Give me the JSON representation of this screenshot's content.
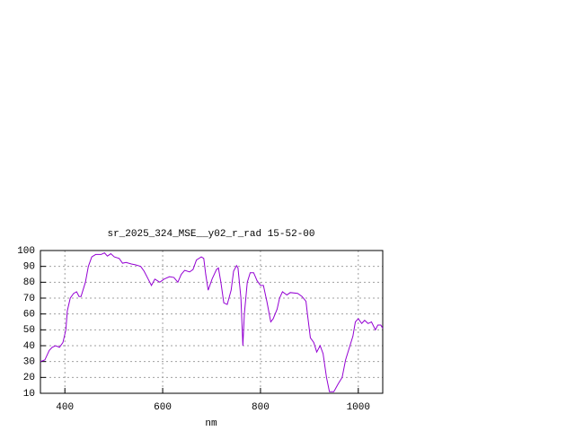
{
  "chart_data": {
    "type": "line",
    "title": "sr_2025_324_MSE__y02_r_rad 15-52-00",
    "x_label": "nm",
    "x": [
      350,
      359,
      368,
      374,
      381,
      389,
      396,
      402,
      405,
      411,
      418,
      424,
      429,
      433,
      442,
      448,
      455,
      463,
      474,
      481,
      487,
      494,
      501,
      511,
      518,
      525,
      536,
      544,
      555,
      562,
      572,
      577,
      584,
      594,
      603,
      614,
      623,
      631,
      638,
      645,
      655,
      662,
      669,
      679,
      684,
      688,
      693,
      701,
      710,
      714,
      719,
      725,
      732,
      740,
      745,
      751,
      754,
      760,
      764,
      767,
      773,
      779,
      786,
      793,
      800,
      806,
      813,
      821,
      826,
      834,
      839,
      845,
      854,
      861,
      876,
      885,
      893,
      896,
      902,
      909,
      915,
      922,
      928,
      935,
      941,
      950,
      959,
      967,
      974,
      981,
      989,
      994,
      1000,
      1007,
      1013,
      1020,
      1027,
      1035,
      1040,
      1046,
      1050
    ],
    "series": [
      {
        "color": "#9400d3",
        "values": [
          30,
          31,
          37,
          39,
          40,
          39,
          42,
          50,
          62,
          70,
          73,
          74,
          71,
          71,
          80,
          90,
          96,
          97.5,
          97.5,
          98.5,
          96.5,
          98,
          96,
          95,
          92,
          92.5,
          91.5,
          91,
          90,
          87,
          81,
          78,
          82,
          80,
          82,
          83.5,
          83,
          80,
          85,
          87.5,
          86.5,
          88,
          94,
          96,
          95,
          85,
          75,
          82,
          88,
          89,
          80,
          67,
          66,
          75,
          87,
          90.5,
          89,
          70,
          40,
          60,
          80,
          86,
          86,
          81,
          78,
          78,
          68,
          55,
          57,
          63,
          70,
          74,
          72,
          73.5,
          73,
          71,
          68,
          60,
          45,
          42,
          36,
          40,
          35,
          20,
          11,
          11,
          16,
          20,
          31,
          38,
          46,
          55,
          57,
          54,
          56,
          54,
          55,
          50,
          53,
          53,
          51
        ]
      }
    ],
    "xlim": [
      350,
      1050
    ],
    "ylim": [
      10,
      100
    ],
    "xticks": [
      400,
      600,
      800,
      1000
    ],
    "yticks": [
      10,
      20,
      30,
      40,
      50,
      60,
      70,
      80,
      90,
      100
    ],
    "grid": true
  }
}
